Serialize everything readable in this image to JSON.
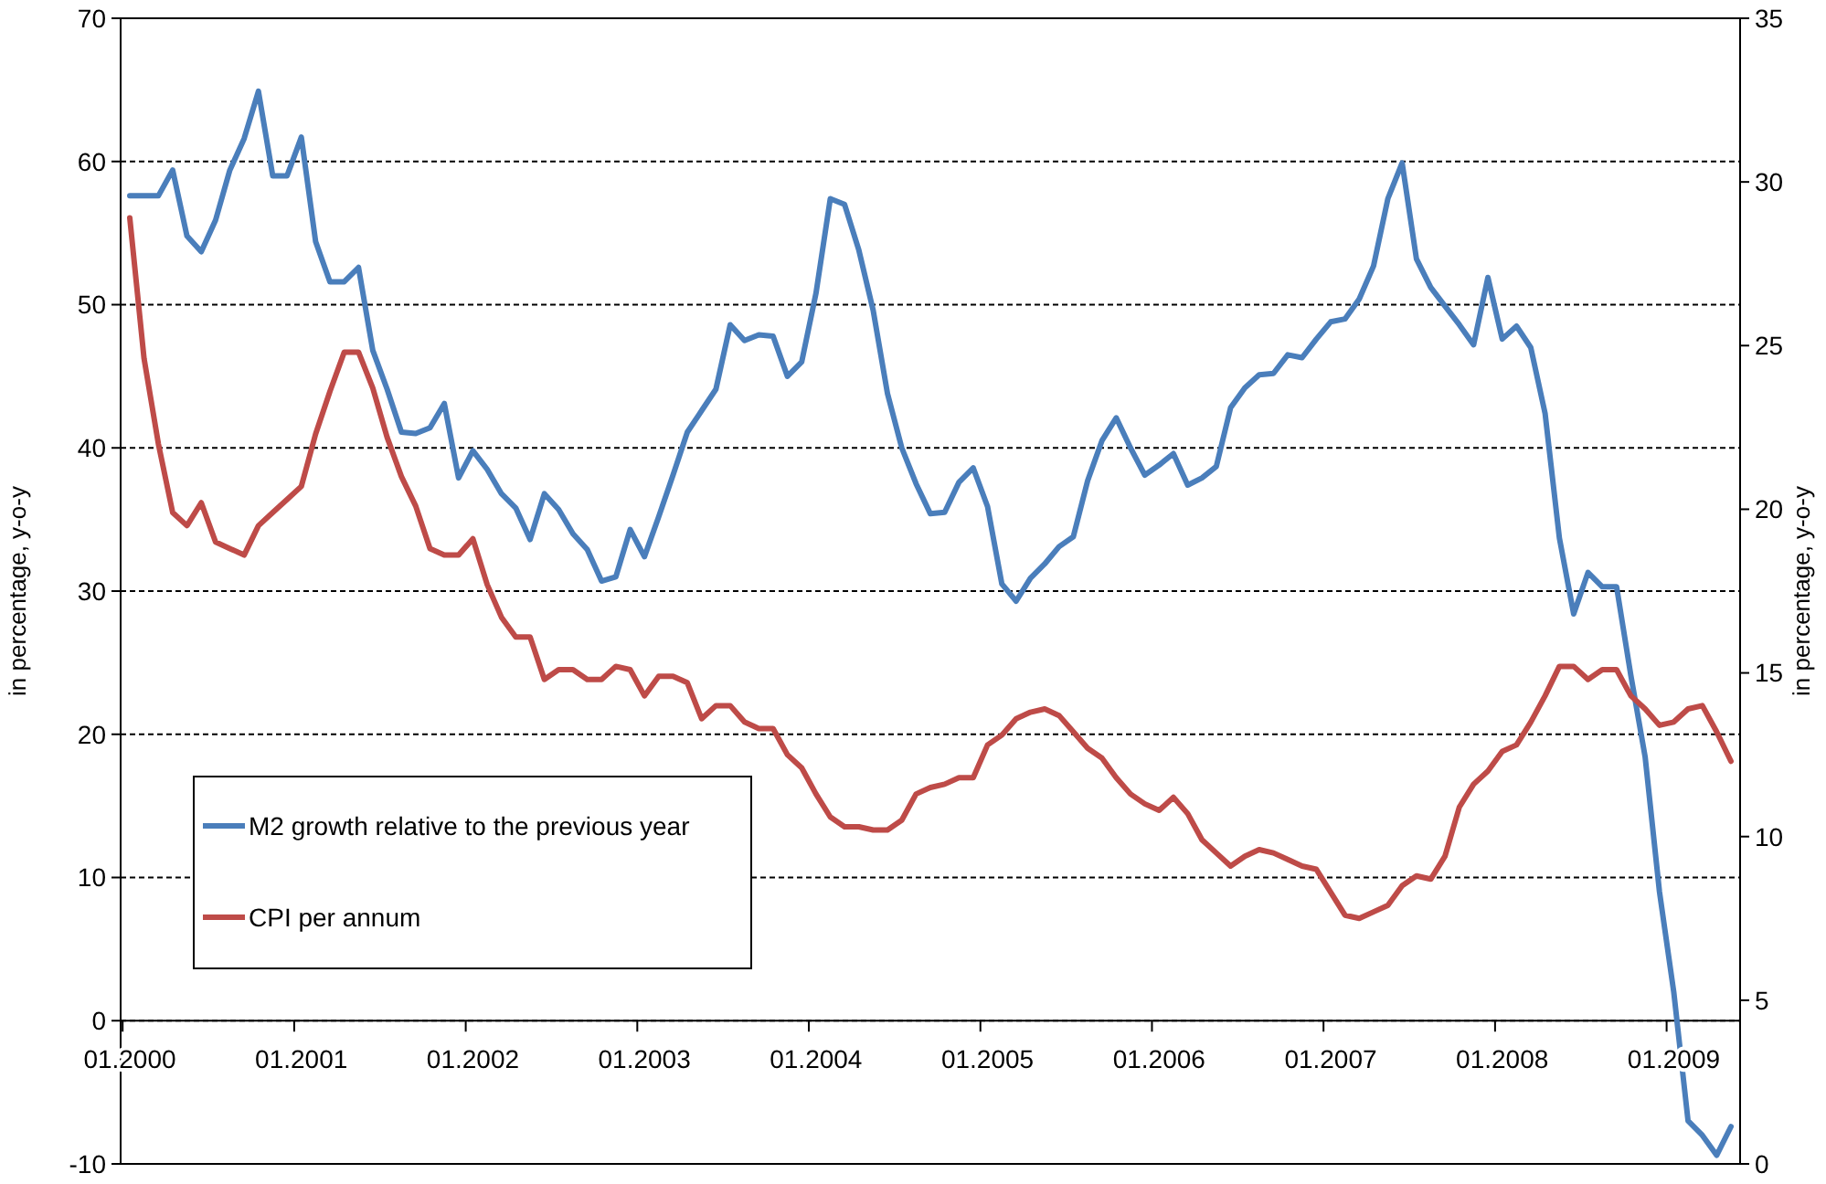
{
  "chart_data": {
    "type": "line",
    "categories": [
      "01.2000",
      null,
      null,
      null,
      null,
      null,
      null,
      null,
      null,
      null,
      null,
      null,
      "01.2001",
      null,
      null,
      null,
      null,
      null,
      null,
      null,
      null,
      null,
      null,
      null,
      "01.2002",
      null,
      null,
      null,
      null,
      null,
      null,
      null,
      null,
      null,
      null,
      null,
      "01.2003",
      null,
      null,
      null,
      null,
      null,
      null,
      null,
      null,
      null,
      null,
      null,
      "01.2004",
      null,
      null,
      null,
      null,
      null,
      null,
      null,
      null,
      null,
      null,
      null,
      "01.2005",
      null,
      null,
      null,
      null,
      null,
      null,
      null,
      null,
      null,
      null,
      null,
      "01.2006",
      null,
      null,
      null,
      null,
      null,
      null,
      null,
      null,
      null,
      null,
      null,
      "01.2007",
      null,
      null,
      null,
      null,
      null,
      null,
      null,
      null,
      null,
      null,
      null,
      "01.2008",
      null,
      null,
      null,
      null,
      null,
      null,
      null,
      null,
      null,
      null,
      null,
      "01.2009",
      null,
      null,
      null,
      null
    ],
    "series": [
      {
        "name": "M2 growth relative to the previous year",
        "color": "#4a7ebb",
        "values": [
          57.6,
          57.6,
          57.6,
          59.4,
          54.8,
          53.7,
          55.9,
          59.4,
          61.6,
          64.9,
          59.0,
          59.0,
          61.7,
          54.4,
          51.6,
          51.6,
          52.6,
          46.8,
          44.1,
          41.1,
          41.0,
          41.4,
          43.1,
          37.9,
          39.8,
          38.5,
          36.8,
          35.8,
          33.6,
          36.8,
          35.7,
          34.0,
          32.9,
          30.7,
          31.0,
          34.3,
          32.4,
          35.2,
          38.1,
          41.1,
          42.6,
          44.1,
          48.6,
          47.5,
          47.9,
          47.8,
          45.0,
          46.0,
          50.8,
          57.4,
          57.0,
          53.8,
          49.6,
          43.8,
          40.0,
          37.5,
          35.4,
          35.5,
          37.6,
          38.6,
          35.9,
          30.5,
          29.3,
          30.9,
          31.9,
          33.1,
          33.8,
          37.7,
          40.5,
          42.1,
          40.0,
          38.1,
          38.8,
          39.6,
          37.4,
          37.9,
          38.7,
          42.8,
          44.2,
          45.1,
          45.2,
          46.5,
          46.3,
          47.6,
          48.8,
          49.0,
          50.4,
          52.7,
          57.4,
          59.9,
          53.2,
          51.2,
          49.9,
          48.6,
          47.2,
          51.9,
          47.6,
          48.5,
          47.0,
          42.4,
          33.7,
          28.4,
          31.3,
          30.3,
          30.3,
          24.1,
          18.4,
          9.0,
          2.0,
          -7.0,
          -8.0,
          -9.4,
          -7.4
        ]
      },
      {
        "name": "CPI per annum",
        "color": "#be4b48",
        "axis": "y2",
        "values": [
          28.9,
          24.6,
          22.0,
          19.9,
          19.5,
          20.2,
          19.0,
          18.8,
          18.6,
          19.5,
          19.9,
          20.3,
          20.7,
          22.3,
          23.6,
          24.8,
          24.8,
          23.7,
          22.2,
          21.0,
          20.1,
          18.8,
          18.6,
          18.6,
          19.1,
          17.7,
          16.7,
          16.1,
          16.1,
          14.8,
          15.1,
          15.1,
          14.8,
          14.8,
          15.2,
          15.1,
          14.3,
          14.9,
          14.9,
          14.7,
          13.6,
          14.0,
          14.0,
          13.5,
          13.3,
          13.3,
          12.5,
          12.1,
          11.3,
          10.6,
          10.3,
          10.3,
          10.2,
          10.2,
          10.5,
          11.3,
          11.5,
          11.6,
          11.8,
          11.8,
          12.8,
          13.1,
          13.6,
          13.8,
          13.9,
          13.7,
          13.2,
          12.7,
          12.4,
          11.8,
          11.3,
          11.0,
          10.8,
          11.2,
          10.7,
          9.9,
          9.5,
          9.1,
          9.4,
          9.6,
          9.5,
          9.3,
          9.1,
          9.0,
          8.3,
          7.6,
          7.5,
          7.7,
          7.9,
          8.5,
          8.8,
          8.7,
          9.4,
          10.9,
          11.6,
          12.0,
          12.6,
          12.8,
          13.5,
          14.3,
          15.2,
          15.2,
          14.8,
          15.1,
          15.1,
          14.3,
          13.9,
          13.4,
          13.5,
          13.9,
          14.0,
          13.2,
          12.3
        ]
      }
    ],
    "ylabel": "in percentage, y-o-y",
    "y2label": "in percentage, y-o-y",
    "ylim": [
      -10,
      70
    ],
    "yticks": [
      -10,
      0,
      10,
      20,
      30,
      40,
      50,
      60,
      70
    ],
    "y2lim": [
      0,
      35
    ],
    "y2ticks": [
      0,
      5,
      10,
      15,
      20,
      25,
      30,
      35
    ],
    "grid": "y",
    "legend": "bottom left",
    "marker": "none",
    "line_style": "solid"
  }
}
